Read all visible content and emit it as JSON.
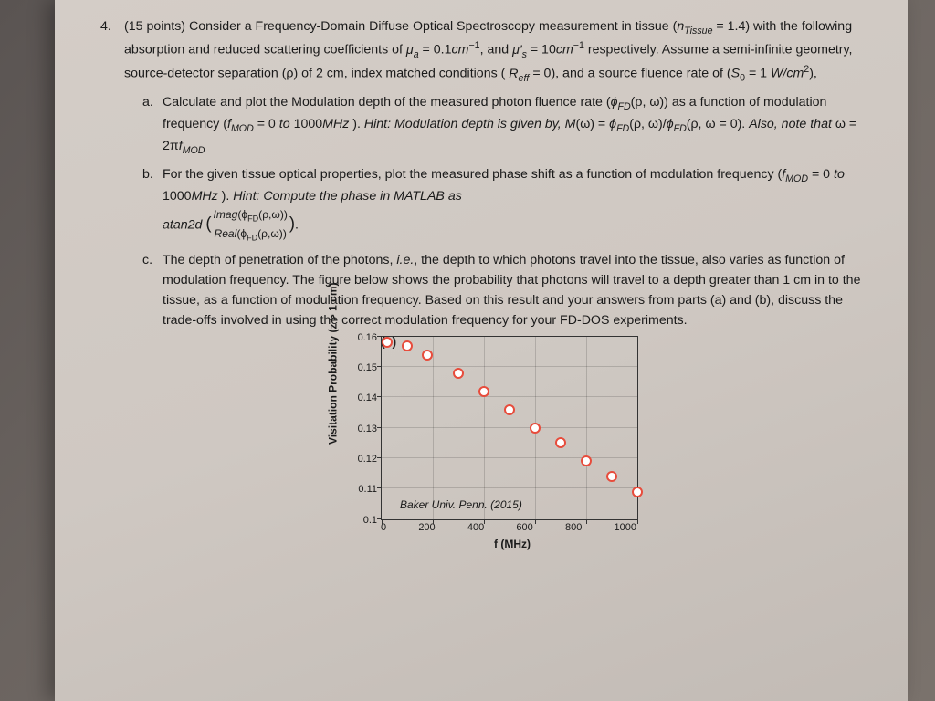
{
  "question": {
    "number": "4.",
    "points": "(15 points)",
    "intro": "Consider a Frequency-Domain Diffuse Optical Spectroscopy measurement in tissue (n_Tissue = 1.4) with the following absorption and reduced scattering coefficients of μ_a = 0.1cm⁻¹, and μ'_s = 10cm⁻¹ respectively. Assume a semi-infinite geometry, source-detector separation (ρ) of 2 cm, index matched conditions ( R_eff = 0), and a source fluence rate of (S₀ = 1 W/cm²),",
    "parts": {
      "a": {
        "letter": "a.",
        "text": "Calculate and plot the Modulation depth of the measured photon fluence rate (ϕ_FD(ρ,ω)) as a function of modulation frequency (f_MOD = 0 to 1000MHz ). Hint: Modulation depth is given by, M(ω) = ϕ_FD(ρ,ω)/ϕ_FD(ρ,ω = 0). Also, note that ω = 2πf_MOD"
      },
      "b": {
        "letter": "b.",
        "text": "For the given tissue optical properties, plot the measured phase shift as a function of modulation frequency (f_MOD = 0 to 1000MHz ). Hint: Compute the phase in MATLAB as atan2d( Imag(ϕ_FD(ρ,ω)) / Real(ϕ_FD(ρ,ω)) )."
      },
      "c": {
        "letter": "c.",
        "text": "The depth of penetration of the photons, i.e., the depth to which photons travel into the tissue, also varies as function of modulation frequency. The figure below shows the probability that photons will travel to a depth greater than 1 cm in to the tissue, as a function of modulation frequency. Based on this result and your answers from parts (a) and (b), discuss the trade-offs involved in using the correct modulation frequency for your FD-DOS experiments."
      }
    }
  },
  "chart": {
    "type": "scatter",
    "panel_label": "(c)",
    "ylabel": "Visitation Probability (z > 1 cm)",
    "xlabel": "f (MHz)",
    "annotation": "Baker Univ. Penn. (2015)",
    "xlim": [
      0,
      1000
    ],
    "ylim": [
      0.1,
      0.16
    ],
    "xticks": [
      0,
      200,
      400,
      600,
      800,
      1000
    ],
    "yticks": [
      0.1,
      0.11,
      0.12,
      0.13,
      0.14,
      0.15,
      0.16
    ],
    "points": [
      {
        "x": 20,
        "y": 0.158
      },
      {
        "x": 100,
        "y": 0.157
      },
      {
        "x": 180,
        "y": 0.154
      },
      {
        "x": 300,
        "y": 0.148
      },
      {
        "x": 400,
        "y": 0.142
      },
      {
        "x": 500,
        "y": 0.136
      },
      {
        "x": 600,
        "y": 0.13
      },
      {
        "x": 700,
        "y": 0.125
      },
      {
        "x": 800,
        "y": 0.119
      },
      {
        "x": 900,
        "y": 0.114
      },
      {
        "x": 1000,
        "y": 0.109
      }
    ],
    "marker_color": "#e74c3c",
    "marker_fill": "#ffffff",
    "grid_color": "rgba(0,0,0,0.15)",
    "axis_color": "#333333",
    "label_fontsize": 12,
    "tick_fontsize": 11
  }
}
